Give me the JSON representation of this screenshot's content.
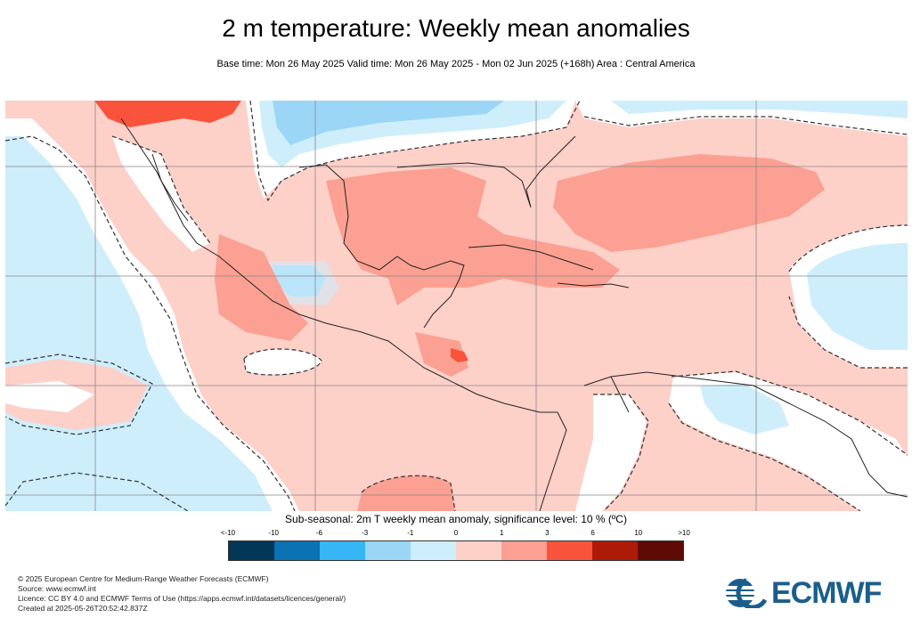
{
  "header": {
    "title": "2 m temperature: Weekly mean anomalies",
    "subtitle": "Base time: Mon 26 May 2025 Valid time: Mon 26 May 2025 - Mon 02 Jun 2025 (+168h) Area : Central America"
  },
  "legend": {
    "title": "Sub-seasonal: 2m T weekly mean anomaly, significance level: 10 % (ºC)",
    "labels": [
      "<-10",
      "-10",
      "-6",
      "-3",
      "-1",
      "0",
      "1",
      "3",
      "6",
      "10",
      ">10"
    ],
    "colors": [
      "#023758",
      "#0b72b4",
      "#37b6f5",
      "#9bd6f7",
      "#cfeefc",
      "#fdd0c8",
      "#fba092",
      "#f9533b",
      "#ae1a08",
      "#5e0b05"
    ]
  },
  "footer": {
    "copyright": "© 2025 European Centre for Medium-Range Weather Forecasts (ECMWF)",
    "source": "Source: www.ecmwf.int",
    "licence": "Licence: CC BY 4.0 and ECMWF Terms of Use (https://apps.ecmwf.int/datasets/licences/general/)",
    "created": "Created at 2025-05-26T20:52:42.837Z"
  },
  "logo": {
    "text": "ECMWF",
    "color": "#1b5e8c"
  }
}
